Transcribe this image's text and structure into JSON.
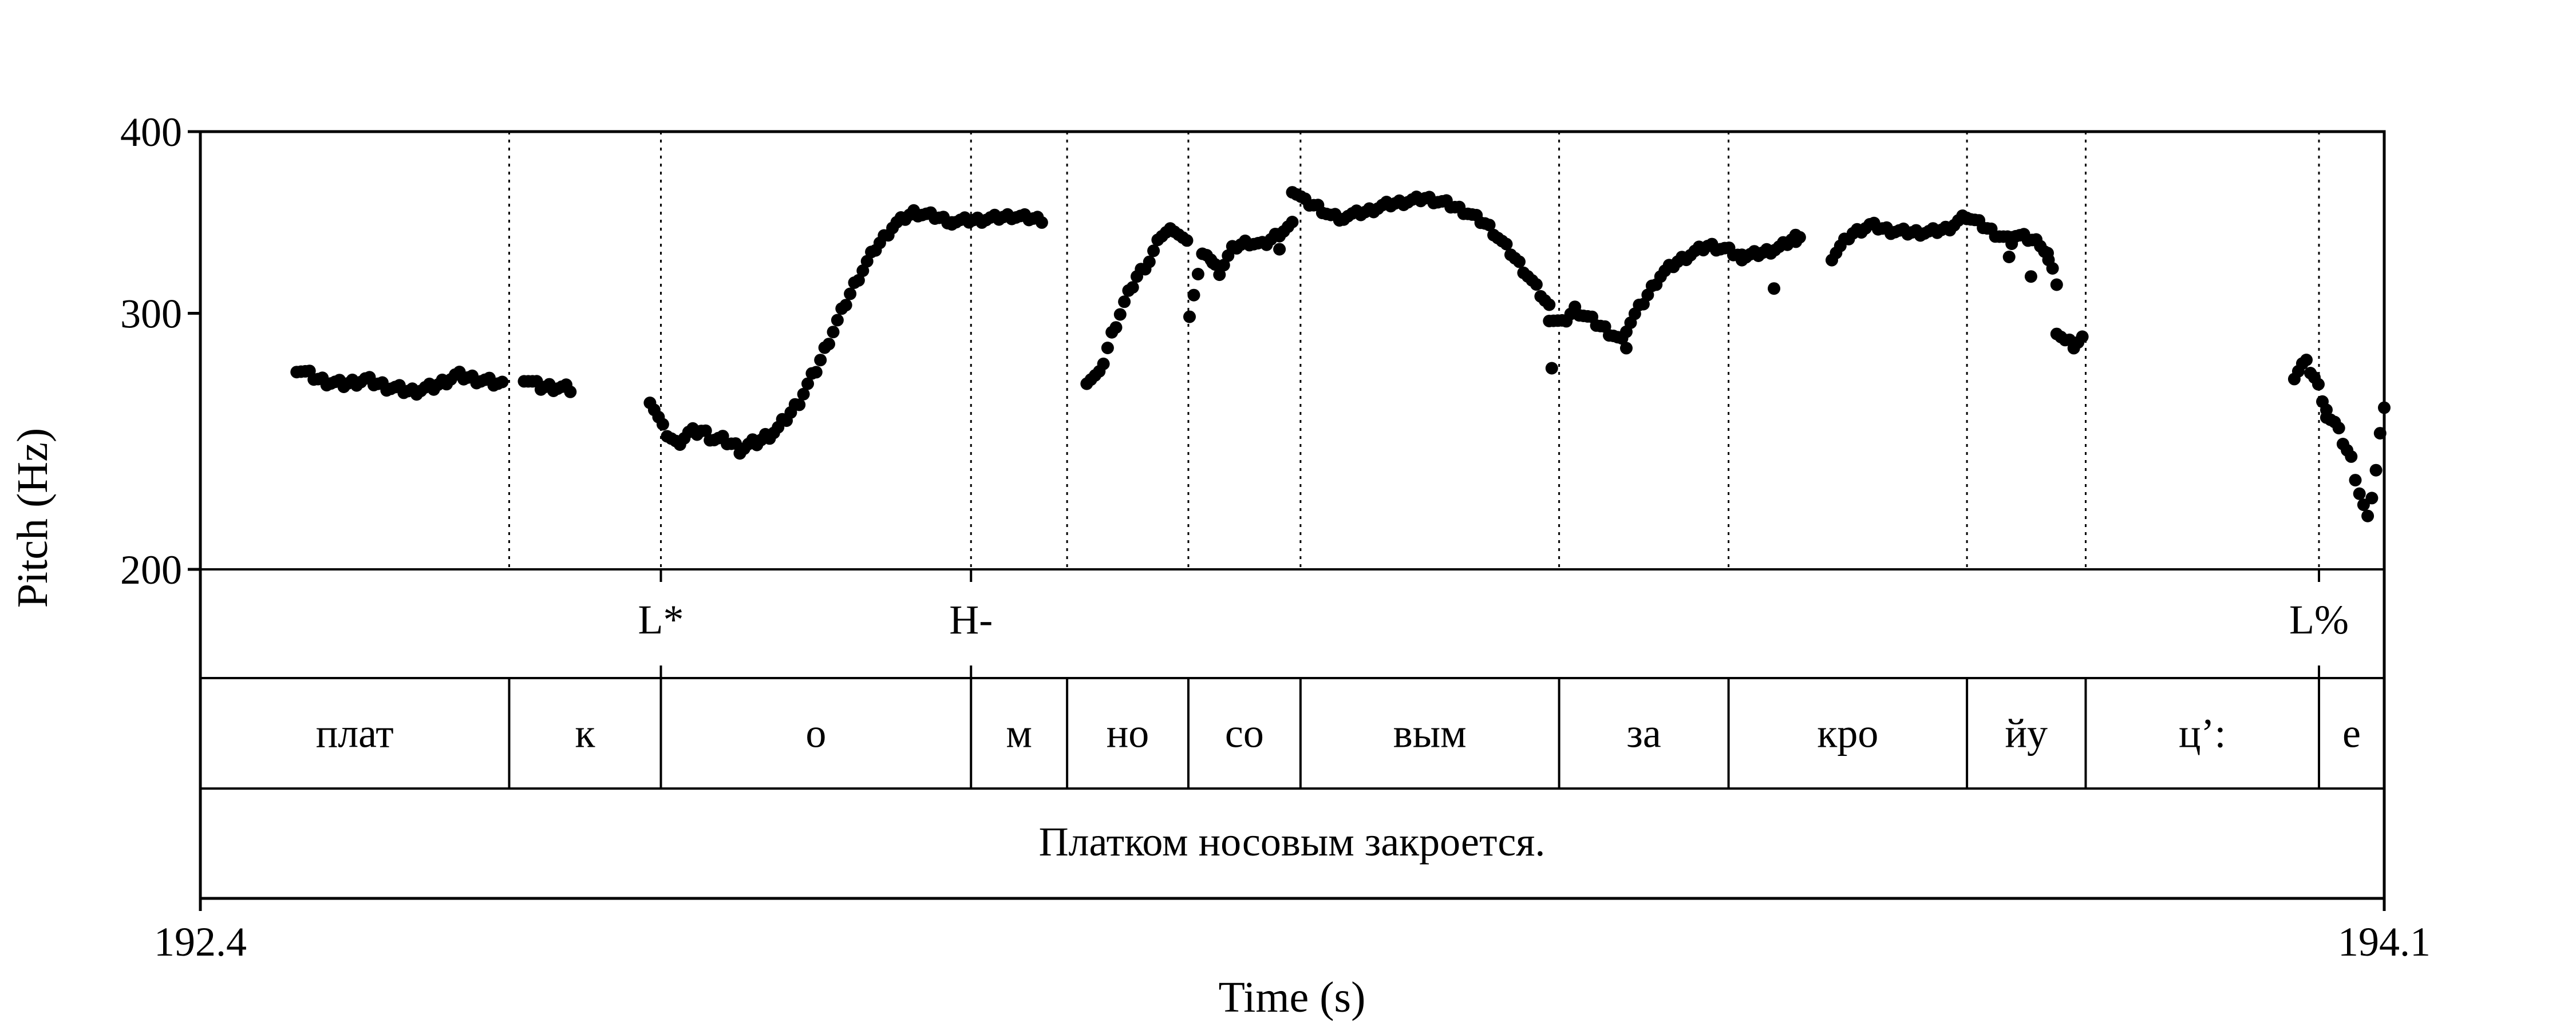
{
  "chart_data": {
    "type": "scatter",
    "xlabel": "Time (s)",
    "ylabel": "Pitch (Hz)",
    "xlim": [
      192.4,
      194.1
    ],
    "ylim": [
      200,
      400
    ],
    "y_scale": "log",
    "x_ticks": [
      "192.4",
      "194.1"
    ],
    "y_ticks": [
      {
        "value": 200,
        "label": "200"
      },
      {
        "value": 300,
        "label": "300"
      },
      {
        "value": 400,
        "label": "400"
      }
    ],
    "boundaries": [
      192.6404,
      192.7585,
      192.9999,
      193.0747,
      193.1691,
      193.2564,
      193.4577,
      193.5896,
      193.7752,
      193.8676,
      194.0492
    ],
    "tones": [
      {
        "label": "L*",
        "time": 192.7585
      },
      {
        "label": "H-",
        "time": 192.9999
      },
      {
        "label": "L%",
        "time": 194.0492
      }
    ],
    "segments": [
      {
        "label": "плат",
        "start": 192.4,
        "end": 192.6404
      },
      {
        "label": "к",
        "start": 192.6404,
        "end": 192.7585
      },
      {
        "label": "о",
        "start": 192.7585,
        "end": 192.9999
      },
      {
        "label": "м",
        "start": 192.9999,
        "end": 193.0747
      },
      {
        "label": "но",
        "start": 193.0747,
        "end": 193.1691
      },
      {
        "label": "со",
        "start": 193.1691,
        "end": 193.2564
      },
      {
        "label": "вым",
        "start": 193.2564,
        "end": 193.4577
      },
      {
        "label": "за",
        "start": 193.4577,
        "end": 193.5896
      },
      {
        "label": "кро",
        "start": 193.5896,
        "end": 193.7752
      },
      {
        "label": "йу",
        "start": 193.7752,
        "end": 193.8676
      },
      {
        "label": "ц’:",
        "start": 193.8676,
        "end": 194.0492
      },
      {
        "label": "е",
        "start": 194.0492,
        "end": 194.1
      }
    ],
    "sentence": "Платком носовым закроется.",
    "pitch_runs": [
      {
        "t": [
          192.475,
          192.635
        ],
        "hz": [
          275,
          270,
          268,
          270,
          267,
          265,
          267,
          272,
          270,
          268
        ]
      },
      {
        "t": [
          192.652,
          192.688
        ],
        "hz": [
          271,
          267,
          267,
          266
        ]
      },
      {
        "t": [
          192.75,
          192.82
        ],
        "hz": [
          262,
          250,
          244,
          248,
          249,
          246,
          245,
          242
        ]
      },
      {
        "t": [
          192.82,
          192.985
        ],
        "hz": [
          242,
          245,
          250,
          260,
          275,
          295,
          315,
          332,
          345,
          352,
          350,
          347
        ]
      },
      {
        "t": [
          192.985,
          193.055
        ],
        "hz": [
          347,
          348,
          350,
          348
        ]
      },
      {
        "t": [
          193.09,
          193.168
        ],
        "hz": [
          270,
          272,
          290,
          305,
          318,
          326,
          340,
          343,
          335
        ]
      },
      {
        "t": [
          193.17,
          193.25
        ],
        "hz": [
          300,
          332,
          320,
          333,
          336,
          334,
          340,
          345
        ]
      },
      {
        "t": [
          193.25,
          193.29
        ],
        "hz": [
          365,
          358,
          355,
          350,
          348
        ]
      },
      {
        "t": [
          193.29,
          193.45
        ],
        "hz": [
          350,
          352,
          356,
          358,
          360,
          357,
          352,
          345,
          332,
          318,
          303
        ]
      },
      {
        "t": [
          193.45,
          193.51
        ],
        "hz": [
          298,
          295,
          302,
          298,
          294,
          290,
          285
        ]
      },
      {
        "t": [
          193.51,
          193.6
        ],
        "hz": [
          293,
          305,
          318,
          325,
          330,
          334,
          332,
          328
        ]
      },
      {
        "t": [
          193.6,
          193.645
        ],
        "hz": [
          328,
          330,
          333,
          340
        ]
      },
      {
        "t": [
          193.67,
          193.775
        ],
        "hz": [
          328,
          340,
          345,
          342,
          341,
          341,
          343,
          350
        ]
      },
      {
        "t": [
          193.775,
          193.81
        ],
        "hz": [
          350,
          345,
          340,
          336
        ]
      },
      {
        "t": [
          193.81,
          193.845
        ],
        "hz": [
          340,
          338,
          335,
          315
        ]
      },
      {
        "t": [
          193.845,
          193.865
        ],
        "hz": [
          292,
          287,
          285,
          288
        ]
      },
      {
        "t": [
          194.03,
          194.055
        ],
        "hz": [
          272,
          278,
          270,
          258
        ]
      },
      {
        "t": [
          194.055,
          194.1
        ],
        "hz": [
          256,
          252,
          245,
          238,
          226,
          216,
          234,
          260
        ]
      }
    ],
    "pitch_points": [
      {
        "t": 193.188,
        "hz": 325
      },
      {
        "t": 193.238,
        "hz": 340
      },
      {
        "t": 193.24,
        "hz": 332
      },
      {
        "t": 193.452,
        "hz": 275
      },
      {
        "t": 193.625,
        "hz": 312
      },
      {
        "t": 193.642,
        "hz": 336
      },
      {
        "t": 193.808,
        "hz": 328
      },
      {
        "t": 193.825,
        "hz": 318
      },
      {
        "t": 193.838,
        "hz": 330
      }
    ]
  }
}
